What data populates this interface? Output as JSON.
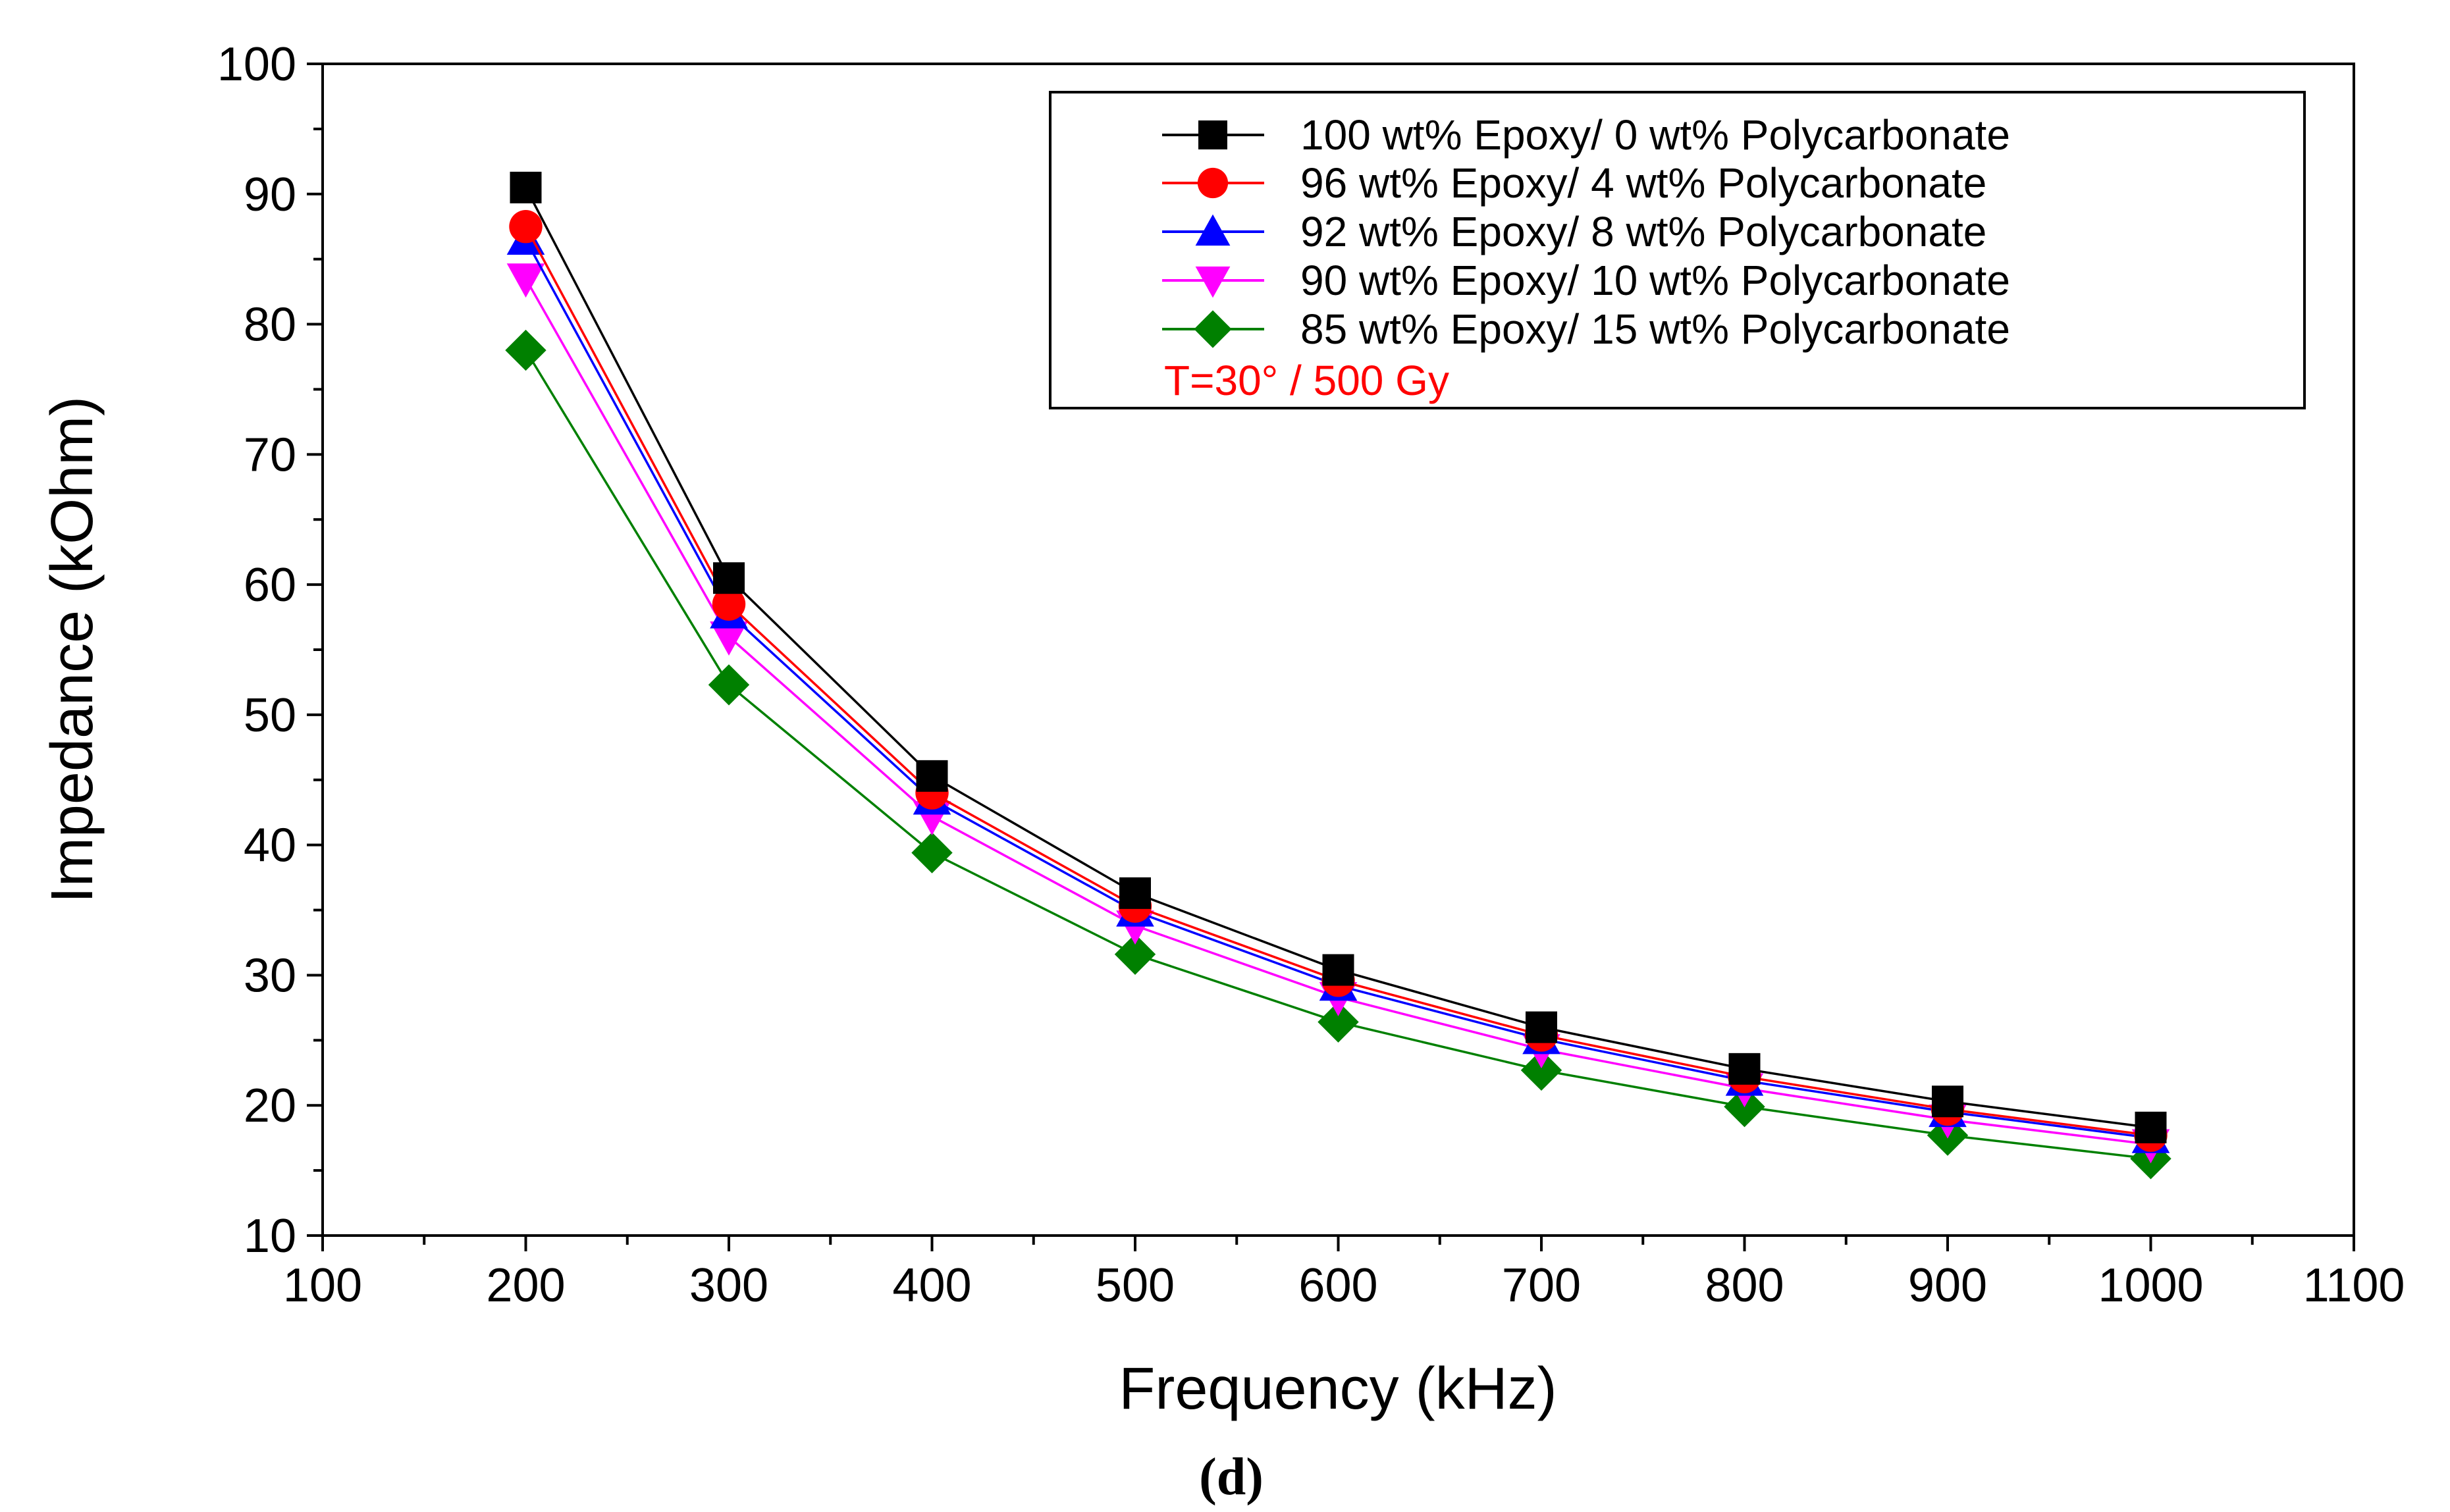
{
  "chart_data": {
    "type": "line",
    "title": "",
    "xlabel": "Frequency (kHz)",
    "ylabel": "Impedance (kOhm)",
    "xlim": [
      100,
      1100
    ],
    "ylim": [
      10,
      100
    ],
    "x_ticks": [
      100,
      200,
      300,
      400,
      500,
      600,
      700,
      800,
      900,
      1000,
      1100
    ],
    "y_ticks": [
      10,
      20,
      30,
      40,
      50,
      60,
      70,
      80,
      90,
      100
    ],
    "x_tick_labels": [
      "100",
      "200",
      "300",
      "400",
      "500",
      "600",
      "700",
      "800",
      "900",
      "1000",
      "1100"
    ],
    "y_tick_labels": [
      "10",
      "20",
      "30",
      "40",
      "50",
      "60",
      "70",
      "80",
      "90",
      "100"
    ],
    "x": [
      200,
      300,
      400,
      500,
      600,
      700,
      800,
      900,
      1000
    ],
    "series": [
      {
        "name": "100 wt% Epoxy/ 0 wt% Polycarbonate",
        "color": "#000000",
        "marker": "square",
        "values": [
          90.5,
          60.5,
          45.3,
          36.3,
          30.4,
          26.0,
          22.8,
          20.3,
          18.3
        ]
      },
      {
        "name": "96 wt% Epoxy/ 4 wt% Polycarbonate",
        "color": "#ff0000",
        "marker": "circle",
        "values": [
          87.5,
          58.5,
          44.0,
          35.3,
          29.6,
          25.4,
          22.2,
          19.7,
          17.7
        ]
      },
      {
        "name": "92 wt% Epoxy/ 8 wt% Polycarbonate",
        "color": "#0000ff",
        "marker": "triangle-up",
        "values": [
          86.5,
          57.8,
          43.5,
          34.9,
          29.2,
          25.1,
          21.9,
          19.5,
          17.5
        ]
      },
      {
        "name": "90 wt% Epoxy/ 10 wt% Polycarbonate",
        "color": "#ff00ff",
        "marker": "triangle-down",
        "values": [
          83.5,
          56.0,
          42.2,
          33.8,
          28.3,
          24.3,
          21.3,
          18.9,
          17.0
        ]
      },
      {
        "name": "85 wt% Epoxy/ 15 wt% Polycarbonate",
        "color": "#008000",
        "marker": "diamond",
        "values": [
          78.0,
          52.3,
          39.4,
          31.6,
          26.4,
          22.7,
          19.9,
          17.7,
          15.9
        ]
      }
    ],
    "legend": {
      "position": "top-right",
      "note": "T=30° / 500 Gy",
      "note_color": "#ff0000"
    },
    "caption": "(d)",
    "grid": false
  }
}
